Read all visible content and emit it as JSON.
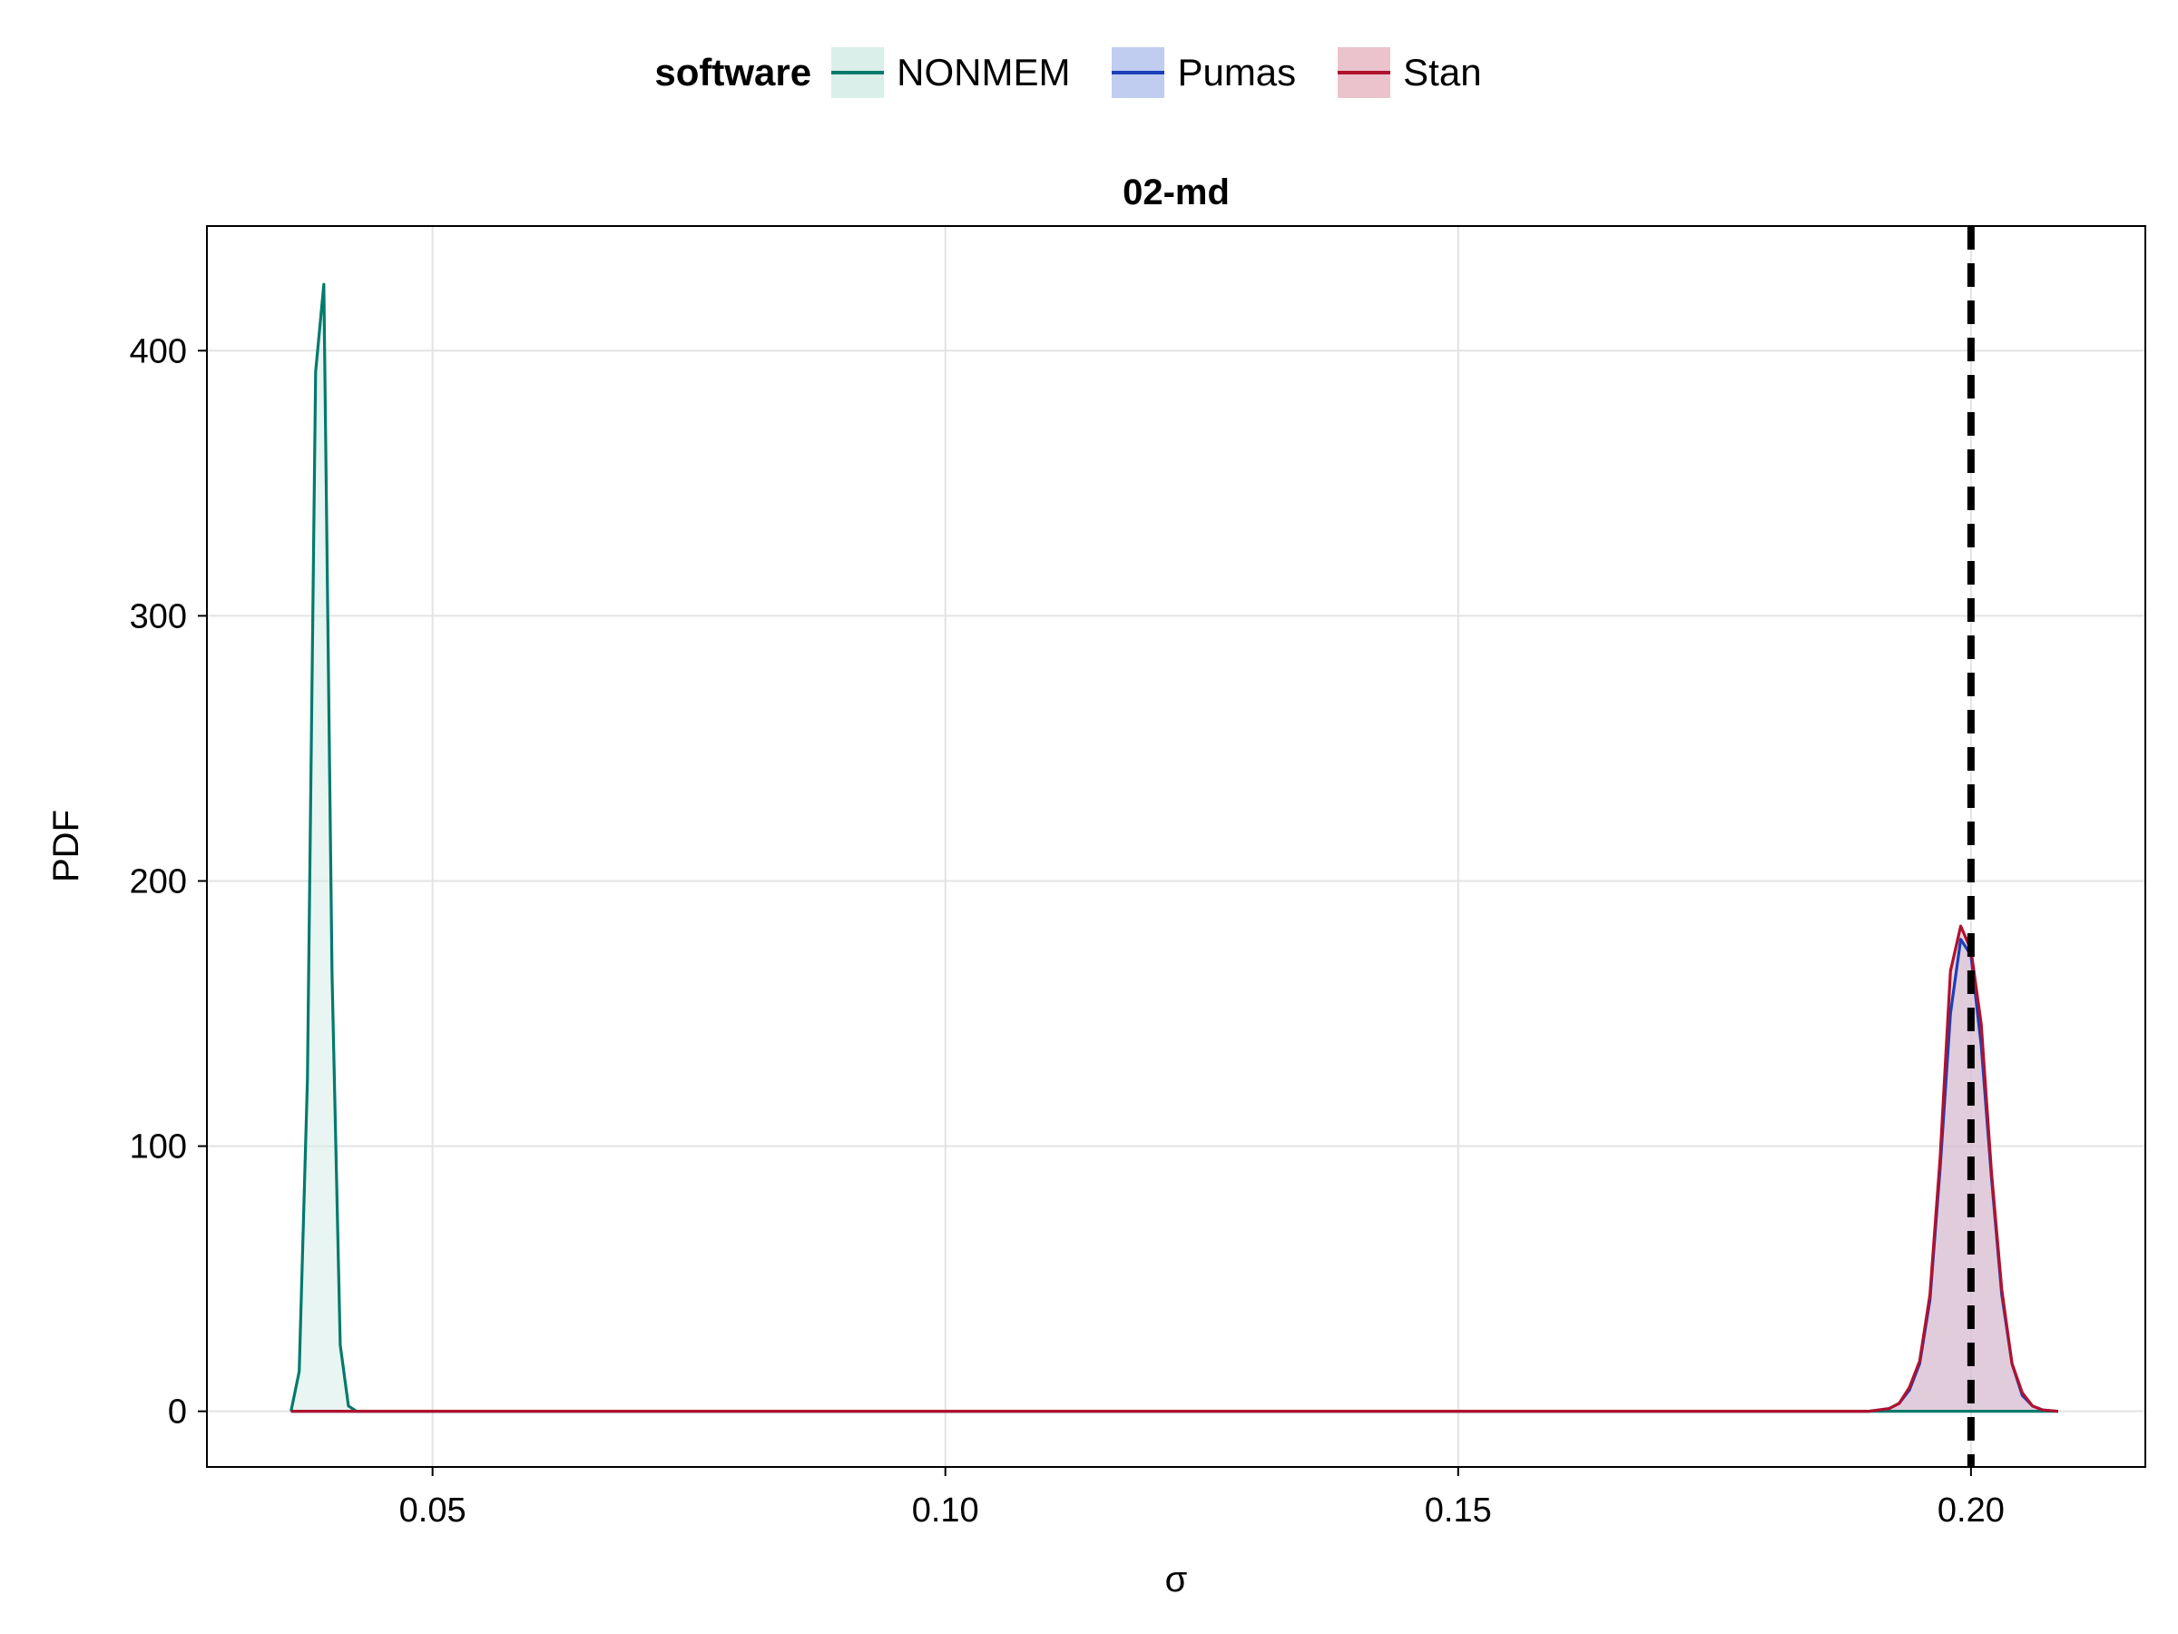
{
  "chart_data": {
    "type": "area",
    "title": "02-md",
    "xlabel": "σ",
    "ylabel": "PDF",
    "xlim": [
      0.028,
      0.217
    ],
    "ylim": [
      -21,
      447
    ],
    "xticks": [
      0.05,
      0.1,
      0.15,
      0.2
    ],
    "xtick_labels": [
      "0.05",
      "0.10",
      "0.15",
      "0.20"
    ],
    "yticks": [
      0,
      100,
      200,
      300,
      400
    ],
    "ytick_labels": [
      "0",
      "100",
      "200",
      "300",
      "400"
    ],
    "grid": true,
    "legend": {
      "title": "software",
      "placement": "top",
      "entries": [
        "NONMEM",
        "Pumas",
        "Stan"
      ]
    },
    "reference_line": {
      "x": 0.2,
      "style": "dashed",
      "color": "#000000"
    },
    "series": [
      {
        "name": "NONMEM",
        "color": "#007a6c",
        "fill": "#d6ece8",
        "x": [
          0.0362,
          0.037,
          0.0378,
          0.0386,
          0.0394,
          0.0402,
          0.041,
          0.0418,
          0.0426,
          0.044,
          0.06,
          0.1,
          0.15,
          0.18,
          0.195,
          0.2,
          0.205,
          0.2085
        ],
        "y": [
          0,
          15,
          125,
          392,
          425,
          165,
          25,
          2,
          0,
          0,
          0,
          0,
          0,
          0,
          0,
          0,
          0,
          0
        ]
      },
      {
        "name": "Pumas",
        "color": "#1a3fb8",
        "fill": "#b9c6ee",
        "x": [
          0.0362,
          0.1,
          0.19,
          0.192,
          0.193,
          0.194,
          0.195,
          0.196,
          0.197,
          0.198,
          0.199,
          0.2,
          0.201,
          0.202,
          0.203,
          0.204,
          0.205,
          0.206,
          0.207,
          0.2085
        ],
        "y": [
          0,
          0,
          0,
          1,
          3,
          8,
          18,
          42,
          92,
          150,
          178,
          172,
          138,
          88,
          44,
          18,
          6,
          2,
          0.5,
          0
        ]
      },
      {
        "name": "Stan",
        "color": "#b0122e",
        "fill": "#e8bcc6",
        "x": [
          0.0362,
          0.1,
          0.19,
          0.192,
          0.193,
          0.194,
          0.195,
          0.196,
          0.197,
          0.198,
          0.199,
          0.2,
          0.201,
          0.202,
          0.203,
          0.204,
          0.205,
          0.206,
          0.207,
          0.2085
        ],
        "y": [
          0,
          0,
          0,
          1,
          3,
          9,
          19,
          44,
          96,
          166,
          183,
          174,
          146,
          90,
          46,
          18,
          7,
          2,
          0.5,
          0
        ]
      }
    ]
  }
}
